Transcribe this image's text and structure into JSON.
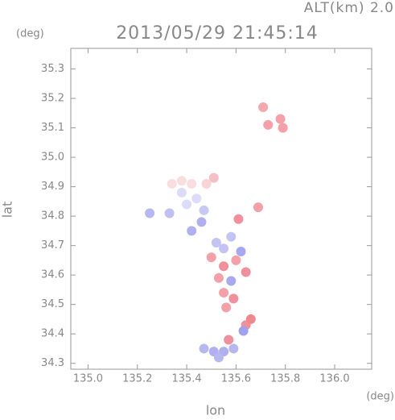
{
  "chart_data": {
    "type": "scatter",
    "title": "2013/05/29 21:45:14",
    "annotation": "ALT(km) 2.0",
    "x_label": "lon",
    "y_label": "lat",
    "x_unit": "(deg)",
    "y_unit": "(deg)",
    "x": [
      135.71,
      135.73,
      135.78,
      135.79,
      135.34,
      135.38,
      135.42,
      135.48,
      135.51,
      135.38,
      135.44,
      135.47,
      135.4,
      135.25,
      135.33,
      135.46,
      135.42,
      135.61,
      135.69,
      135.52,
      135.55,
      135.58,
      135.5,
      135.55,
      135.6,
      135.64,
      135.53,
      135.62,
      135.58,
      135.55,
      135.59,
      135.56,
      135.64,
      135.66,
      135.63,
      135.57,
      135.47,
      135.51,
      135.55,
      135.59,
      135.53
    ],
    "y": [
      35.17,
      35.11,
      35.13,
      35.1,
      34.91,
      34.92,
      34.91,
      34.91,
      34.93,
      34.88,
      34.86,
      34.82,
      34.84,
      34.81,
      34.81,
      34.78,
      34.75,
      34.79,
      34.83,
      34.71,
      34.69,
      34.73,
      34.66,
      34.63,
      34.65,
      34.61,
      34.59,
      34.68,
      34.58,
      34.54,
      34.52,
      34.49,
      34.43,
      34.45,
      34.41,
      34.38,
      34.35,
      34.34,
      34.34,
      34.35,
      34.32
    ],
    "colors": [
      "#f4a8ae",
      "#f4a0a8",
      "#f4a0a8",
      "#f4a0a8",
      "#f8dede",
      "#f8dede",
      "#f8dede",
      "#f8d4d4",
      "#f4c0c4",
      "#dcdcf8",
      "#dcdcf8",
      "#c8c8f4",
      "#dcdcf8",
      "#b8b8f0",
      "#c0c0f4",
      "#b0b0f0",
      "#b0b0f0",
      "#f0909c",
      "#f4a0a8",
      "#c4c4f4",
      "#c4c4f4",
      "#c4c4f4",
      "#f4a0a8",
      "#f0909c",
      "#f4a0a8",
      "#f0909c",
      "#f4a0a8",
      "#a8a8f0",
      "#a8a8f0",
      "#f4a0a8",
      "#f0909c",
      "#f4a0a8",
      "#f0909c",
      "#f08890",
      "#a0a0ec",
      "#f0909c",
      "#b8b8f0",
      "#b0b0f0",
      "#b0b0f0",
      "#b8b8f0",
      "#b8b8f0"
    ],
    "xlim": [
      134.93,
      136.15
    ],
    "ylim": [
      34.28,
      35.37
    ],
    "xticks": [
      {
        "value": 135,
        "label": "135.0"
      },
      135.2,
      135.4,
      135.6,
      135.8,
      {
        "value": 136,
        "label": "136.0"
      }
    ],
    "yticks": [
      34.3,
      34.4,
      34.5,
      34.6,
      34.7,
      34.8,
      34.9,
      {
        "value": 35,
        "label": "35.0"
      },
      35.1,
      35.2,
      35.3
    ]
  }
}
